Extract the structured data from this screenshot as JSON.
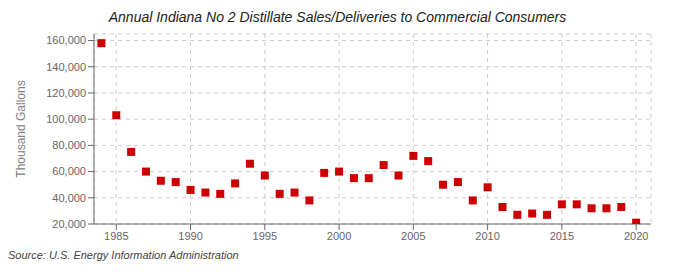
{
  "chart_data": {
    "type": "scatter",
    "title": "Annual Indiana No 2 Distillate Sales/Deliveries to Commercial Consumers",
    "ylabel": "Thousand Gallons",
    "annotations": [
      "Source: U.S. Energy Information Administration"
    ],
    "x": [
      1984,
      1985,
      1986,
      1987,
      1988,
      1989,
      1990,
      1991,
      1992,
      1993,
      1994,
      1995,
      1996,
      1997,
      1998,
      1999,
      2000,
      2001,
      2002,
      2003,
      2004,
      2005,
      2006,
      2007,
      2008,
      2009,
      2010,
      2011,
      2012,
      2013,
      2014,
      2015,
      2016,
      2017,
      2018,
      2019,
      2020
    ],
    "values": [
      158000,
      103000,
      75000,
      60000,
      53000,
      52000,
      46000,
      44000,
      43000,
      51000,
      66000,
      57000,
      43000,
      44000,
      38000,
      59000,
      60000,
      55000,
      55000,
      65000,
      57000,
      72000,
      68000,
      50000,
      52000,
      38000,
      48000,
      33000,
      27000,
      28000,
      27000,
      35000,
      35000,
      32000,
      32000,
      33000,
      21000
    ],
    "color": "#cc0000",
    "marker": "square",
    "grid": true,
    "xlim": [
      1983.5,
      2021
    ],
    "xticks": [
      1985,
      1990,
      1995,
      2000,
      2005,
      2010,
      2015,
      2020
    ],
    "ylim": [
      20000,
      165000
    ],
    "yticks": [
      {
        "value": 20000,
        "label": "20,000"
      },
      {
        "value": 40000,
        "label": "40,000"
      },
      {
        "value": 60000,
        "label": "60,000"
      },
      {
        "value": 80000,
        "label": "80,000"
      },
      {
        "value": 100000,
        "label": "100,000"
      },
      {
        "value": 120000,
        "label": "120,000"
      },
      {
        "value": 140000,
        "label": "140,000"
      },
      {
        "value": 160000,
        "label": "160,000"
      }
    ]
  }
}
